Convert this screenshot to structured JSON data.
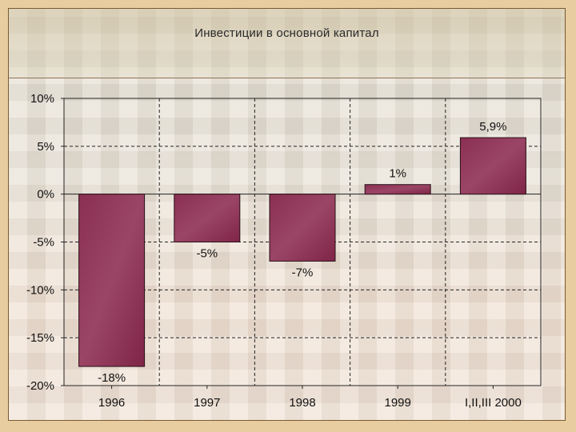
{
  "chart_data": {
    "type": "bar",
    "title": "Инвестиции в основной капитал",
    "categories": [
      "1996",
      "1997",
      "1998",
      "1999",
      "I,II,III 2000"
    ],
    "values": [
      -18,
      -5,
      -7,
      1,
      5.9
    ],
    "data_labels": [
      "-18%",
      "-5%",
      "-7%",
      "1%",
      "5,9%"
    ],
    "y_ticks": [
      10,
      5,
      0,
      -5,
      -10,
      -15,
      -20
    ],
    "y_tick_labels": [
      "10%",
      "5%",
      "0%",
      "-5%",
      "-10%",
      "-15%",
      "-20%"
    ],
    "ylim": [
      -20,
      10
    ],
    "xlabel": "",
    "ylabel": "",
    "grid": true,
    "bar_color": "#8e3355"
  }
}
